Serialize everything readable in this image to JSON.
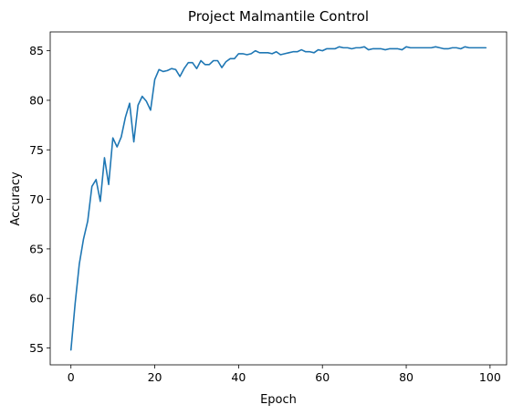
{
  "chart_data": {
    "type": "line",
    "title": "Project Malmantile Control",
    "xlabel": "Epoch",
    "ylabel": "Accuracy",
    "xlim": [
      -4.95,
      103.95
    ],
    "ylim": [
      53.3,
      86.9
    ],
    "xticks": [
      0,
      20,
      40,
      60,
      80,
      100
    ],
    "yticks": [
      55,
      60,
      65,
      70,
      75,
      80,
      85
    ],
    "grid": false,
    "legend": "none",
    "line_color": "#1f77b4",
    "x": [
      0,
      1,
      2,
      3,
      4,
      5,
      6,
      7,
      8,
      9,
      10,
      11,
      12,
      13,
      14,
      15,
      16,
      17,
      18,
      19,
      20,
      21,
      22,
      23,
      24,
      25,
      26,
      27,
      28,
      29,
      30,
      31,
      32,
      33,
      34,
      35,
      36,
      37,
      38,
      39,
      40,
      41,
      42,
      43,
      44,
      45,
      46,
      47,
      48,
      49,
      50,
      51,
      52,
      53,
      54,
      55,
      56,
      57,
      58,
      59,
      60,
      61,
      62,
      63,
      64,
      65,
      66,
      67,
      68,
      69,
      70,
      71,
      72,
      73,
      74,
      75,
      76,
      77,
      78,
      79,
      80,
      81,
      82,
      83,
      84,
      85,
      86,
      87,
      88,
      89,
      90,
      91,
      92,
      93,
      94,
      95,
      96,
      97,
      98,
      99
    ],
    "y": [
      54.8,
      59.5,
      63.5,
      66.0,
      67.8,
      71.3,
      72.0,
      69.8,
      74.2,
      71.5,
      76.2,
      75.3,
      76.3,
      78.3,
      79.7,
      75.8,
      79.5,
      80.4,
      79.9,
      79.0,
      82.1,
      83.1,
      82.9,
      83.0,
      83.2,
      83.1,
      82.4,
      83.2,
      83.8,
      83.8,
      83.2,
      84.0,
      83.6,
      83.6,
      84.0,
      84.0,
      83.3,
      83.9,
      84.2,
      84.2,
      84.7,
      84.7,
      84.6,
      84.7,
      85.0,
      84.8,
      84.8,
      84.8,
      84.7,
      84.9,
      84.6,
      84.7,
      84.8,
      84.9,
      84.9,
      85.1,
      84.9,
      84.9,
      84.8,
      85.1,
      85.0,
      85.2,
      85.2,
      85.2,
      85.4,
      85.3,
      85.3,
      85.2,
      85.3,
      85.3,
      85.4,
      85.1,
      85.2,
      85.2,
      85.2,
      85.1,
      85.2,
      85.2,
      85.2,
      85.1,
      85.4,
      85.3,
      85.3,
      85.3,
      85.3,
      85.3,
      85.3,
      85.4,
      85.3,
      85.2,
      85.2,
      85.3,
      85.3,
      85.2,
      85.4,
      85.3,
      85.3,
      85.3,
      85.3,
      85.3
    ]
  }
}
